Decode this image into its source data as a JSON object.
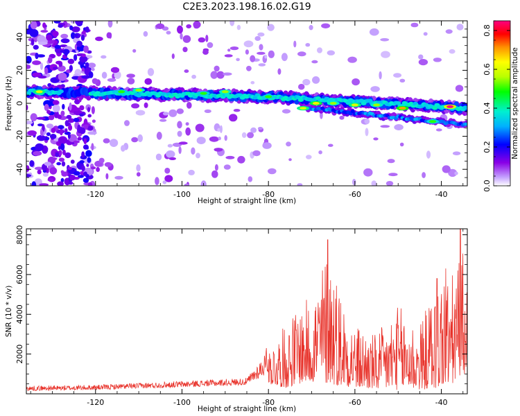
{
  "title": "C2E3.2023.198.16.02.G19",
  "chart_data": [
    {
      "type": "heatmap",
      "xlabel": "Height of straight line (km)",
      "ylabel": "Frequency (Hz)",
      "xlim": [
        -136,
        -34
      ],
      "ylim": [
        -50,
        50
      ],
      "xticks": [
        "-120",
        "-100",
        "-80",
        "-60",
        "-40"
      ],
      "yticks": [
        "40",
        "20",
        "0",
        "-20",
        "-40"
      ],
      "colorbar": {
        "label": "Normalized spectral amplitude",
        "range": [
          0,
          0.85
        ],
        "ticks": [
          "0.0",
          "0.2",
          "0.4",
          "0.6",
          "0.8"
        ],
        "colors": [
          "#ffffff",
          "#c6a6ff",
          "#8a00e6",
          "#0000ff",
          "#00b0ff",
          "#00f0d0",
          "#00ff00",
          "#b8ff00",
          "#ffff00",
          "#ff9000",
          "#ff0000",
          "#ff0080"
        ]
      },
      "signal_track": {
        "start": [
          -136,
          7
        ],
        "mid": [
          -80,
          4
        ],
        "end": [
          -34,
          -3
        ],
        "secondary": [
          [
            -70,
            -3
          ],
          [
            -34,
            -13
          ]
        ]
      },
      "hotspots": [
        {
          "x": -133,
          "y": 7,
          "amp": 0.6
        },
        {
          "x": -114,
          "y": 7,
          "amp": 0.5
        },
        {
          "x": -110,
          "y": 8,
          "amp": 0.55
        },
        {
          "x": -95,
          "y": 6,
          "amp": 0.5
        },
        {
          "x": -90,
          "y": 7,
          "amp": 0.55
        },
        {
          "x": -80,
          "y": 4,
          "amp": 0.5
        },
        {
          "x": -72,
          "y": -3,
          "amp": 0.6
        },
        {
          "x": -69,
          "y": 0,
          "amp": 0.65
        },
        {
          "x": -65,
          "y": 0,
          "amp": 0.55
        },
        {
          "x": -60,
          "y": -1,
          "amp": 0.6
        },
        {
          "x": -55,
          "y": -1,
          "amp": 0.55
        },
        {
          "x": -49,
          "y": -3,
          "amp": 0.7
        },
        {
          "x": -38,
          "y": -2,
          "amp": 0.85
        },
        {
          "x": -42,
          "y": -11,
          "amp": 0.5
        }
      ]
    },
    {
      "type": "line",
      "xlabel": "Height of straight line (km)",
      "ylabel": "SNR (10 * v/v)",
      "xlim": [
        -136,
        -34
      ],
      "ylim": [
        0,
        8300
      ],
      "xticks": [
        "-120",
        "-100",
        "-80",
        "-60",
        "-40"
      ],
      "yticks": [
        "8000",
        "6000",
        "4000",
        "2000"
      ],
      "color": "#e8322a",
      "envelope": [
        {
          "x": -136,
          "low": 50,
          "high": 400
        },
        {
          "x": -120,
          "low": 100,
          "high": 450
        },
        {
          "x": -100,
          "low": 200,
          "high": 650
        },
        {
          "x": -85,
          "low": 300,
          "high": 800
        },
        {
          "x": -80,
          "low": 500,
          "high": 2300
        },
        {
          "x": -76,
          "low": 300,
          "high": 3500
        },
        {
          "x": -73,
          "low": 500,
          "high": 4500
        },
        {
          "x": -70,
          "low": 600,
          "high": 4900
        },
        {
          "x": -66,
          "low": 500,
          "high": 7700
        },
        {
          "x": -63,
          "low": 400,
          "high": 5000
        },
        {
          "x": -60,
          "low": 300,
          "high": 3500
        },
        {
          "x": -55,
          "low": 200,
          "high": 3000
        },
        {
          "x": -50,
          "low": 200,
          "high": 4500
        },
        {
          "x": -45,
          "low": 200,
          "high": 3500
        },
        {
          "x": -40,
          "low": 300,
          "high": 6300
        },
        {
          "x": -37,
          "low": 500,
          "high": 6000
        },
        {
          "x": -35.5,
          "low": 1000,
          "high": 8300
        },
        {
          "x": -34,
          "low": 1000,
          "high": 5000
        }
      ],
      "peaks": [
        {
          "x": -66.3,
          "y": 7750
        },
        {
          "x": -35.6,
          "y": 8300
        },
        {
          "x": -39,
          "y": 6300
        },
        {
          "x": -41,
          "y": 5800
        },
        {
          "x": -80.5,
          "y": 2300
        }
      ]
    }
  ]
}
